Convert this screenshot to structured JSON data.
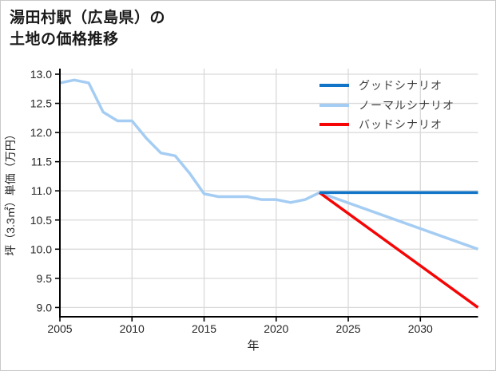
{
  "page": {
    "title_line1": "湯田村駅（広島県）の",
    "title_line2": "土地の価格推移"
  },
  "chart_data": {
    "type": "line",
    "title": "湯田村駅（広島県）の土地の価格推移",
    "xlabel": "年",
    "ylabel": "坪（3.3㎡）単価（万円）",
    "xlim": [
      2005,
      2034
    ],
    "ylim": [
      8.84,
      13.1
    ],
    "xticks": [
      2005,
      2010,
      2015,
      2020,
      2025,
      2030
    ],
    "yticks": [
      9.0,
      9.5,
      10.0,
      10.5,
      11.0,
      11.5,
      12.0,
      12.5,
      13.0
    ],
    "grid": true,
    "legend_position": "upper-right",
    "colors": {
      "good": "#1174c7",
      "normal": "#a5cdf3",
      "bad": "#f50505",
      "grid": "#d9d9d9",
      "axis": "#000000",
      "tick_label": "#262626",
      "legend_text": "#3d3d3d"
    },
    "history": {
      "color_key": "normal",
      "x": [
        2005,
        2006,
        2007,
        2008,
        2009,
        2010,
        2011,
        2012,
        2013,
        2014,
        2015,
        2016,
        2017,
        2018,
        2019,
        2020,
        2021,
        2022,
        2023
      ],
      "y": [
        12.85,
        12.9,
        12.85,
        12.35,
        12.2,
        12.2,
        11.9,
        11.65,
        11.6,
        11.3,
        10.95,
        10.9,
        10.9,
        10.9,
        10.85,
        10.85,
        10.8,
        10.85,
        10.97
      ]
    },
    "series": [
      {
        "name": "グッドシナリオ",
        "color_key": "good",
        "x": [
          2023,
          2034
        ],
        "y": [
          10.97,
          10.97
        ]
      },
      {
        "name": "ノーマルシナリオ",
        "color_key": "normal",
        "x": [
          2023,
          2034
        ],
        "y": [
          10.97,
          10.0
        ]
      },
      {
        "name": "バッドシナリオ",
        "color_key": "bad",
        "x": [
          2023,
          2034
        ],
        "y": [
          10.97,
          9.0
        ]
      }
    ]
  }
}
